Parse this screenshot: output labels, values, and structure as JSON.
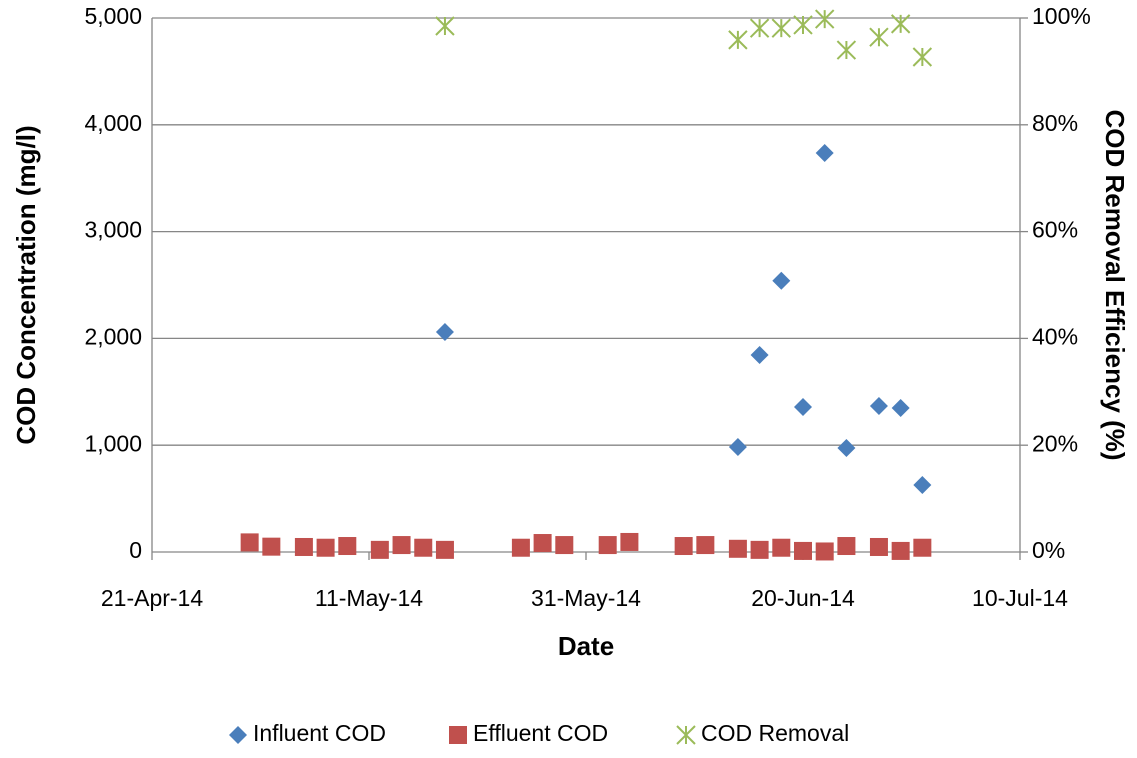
{
  "chart_data": {
    "type": "scatter",
    "x_label": "Date",
    "y_label": "COD Concentration (mg/l)",
    "y2_label": "COD Removal Efficiency (%)",
    "xlim": [
      "2014-04-21",
      "2014-07-10"
    ],
    "xticks": [
      {
        "value": "2014-04-21",
        "label": "21-Apr-14"
      },
      {
        "value": "2014-05-11",
        "label": "11-May-14"
      },
      {
        "value": "2014-05-31",
        "label": "31-May-14"
      },
      {
        "value": "2014-06-20",
        "label": "20-Jun-14"
      },
      {
        "value": "2014-07-10",
        "label": "10-Jul-14"
      }
    ],
    "ylim": [
      0,
      5000
    ],
    "yticks": [
      0,
      {
        "value": 1000,
        "label": "1,000"
      },
      {
        "value": 2000,
        "label": "2,000"
      },
      {
        "value": 3000,
        "label": "3,000"
      },
      {
        "value": 4000,
        "label": "4,000"
      },
      {
        "value": 5000,
        "label": "5,000"
      }
    ],
    "y2lim": [
      0,
      100
    ],
    "y2ticks": [
      {
        "value": 0,
        "label": "0%"
      },
      {
        "value": 20,
        "label": "20%"
      },
      {
        "value": 40,
        "label": "40%"
      },
      {
        "value": 60,
        "label": "60%"
      },
      {
        "value": 80,
        "label": "80%"
      },
      {
        "value": 100,
        "label": "100%"
      }
    ],
    "grid": true,
    "legend": "bottom",
    "series": [
      {
        "name": "Influent COD",
        "color": "#4a7ebb",
        "marker": "diamond",
        "x": [
          "2014-05-18",
          "2014-06-14",
          "2014-06-16",
          "2014-06-18",
          "2014-06-20",
          "2014-06-22",
          "2014-06-24",
          "2014-06-27",
          "2014-06-29",
          "2014-07-01"
        ],
        "values": [
          2060,
          983,
          1845,
          2540,
          1358,
          3736,
          974,
          1367,
          1348,
          627
        ]
      },
      {
        "name": "Effluent COD",
        "color": "#c0504d",
        "marker": "square",
        "x": [
          "2014-04-30",
          "2014-05-02",
          "2014-05-05",
          "2014-05-07",
          "2014-05-09",
          "2014-05-12",
          "2014-05-14",
          "2014-05-16",
          "2014-05-18",
          "2014-05-25",
          "2014-05-27",
          "2014-05-29",
          "2014-06-02",
          "2014-06-04",
          "2014-06-09",
          "2014-06-11",
          "2014-06-14",
          "2014-06-16",
          "2014-06-18",
          "2014-06-20",
          "2014-06-22",
          "2014-06-24",
          "2014-06-27",
          "2014-06-29",
          "2014-07-01"
        ],
        "values": [
          90,
          50,
          47,
          40,
          56,
          20,
          65,
          40,
          20,
          40,
          84,
          65,
          65,
          94,
          56,
          65,
          30,
          20,
          40,
          10,
          5,
          56,
          47,
          10,
          40
        ]
      },
      {
        "name": "COD Removal",
        "color": "#9bbb59",
        "marker": "asterisk",
        "axis": "y2",
        "x": [
          "2014-05-18",
          "2014-06-14",
          "2014-06-16",
          "2014-06-18",
          "2014-06-20",
          "2014-06-22",
          "2014-06-24",
          "2014-06-27",
          "2014-06-29",
          "2014-07-01"
        ],
        "values": [
          98.5,
          95.9,
          98.1,
          98.1,
          98.7,
          99.8,
          94.0,
          96.4,
          98.9,
          92.7
        ]
      }
    ]
  }
}
